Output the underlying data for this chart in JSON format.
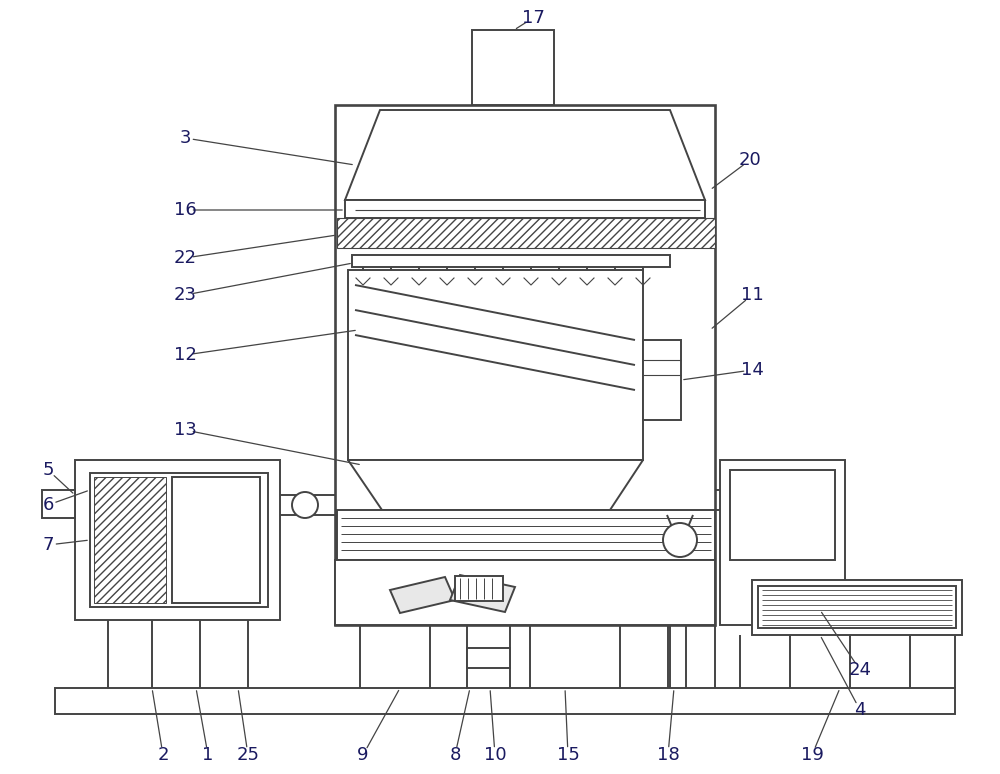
{
  "bg": "#ffffff",
  "lc": "#444444",
  "tc": "#1a1a60",
  "lw": 1.4,
  "figsize": [
    10.0,
    7.74
  ],
  "dpi": 100
}
